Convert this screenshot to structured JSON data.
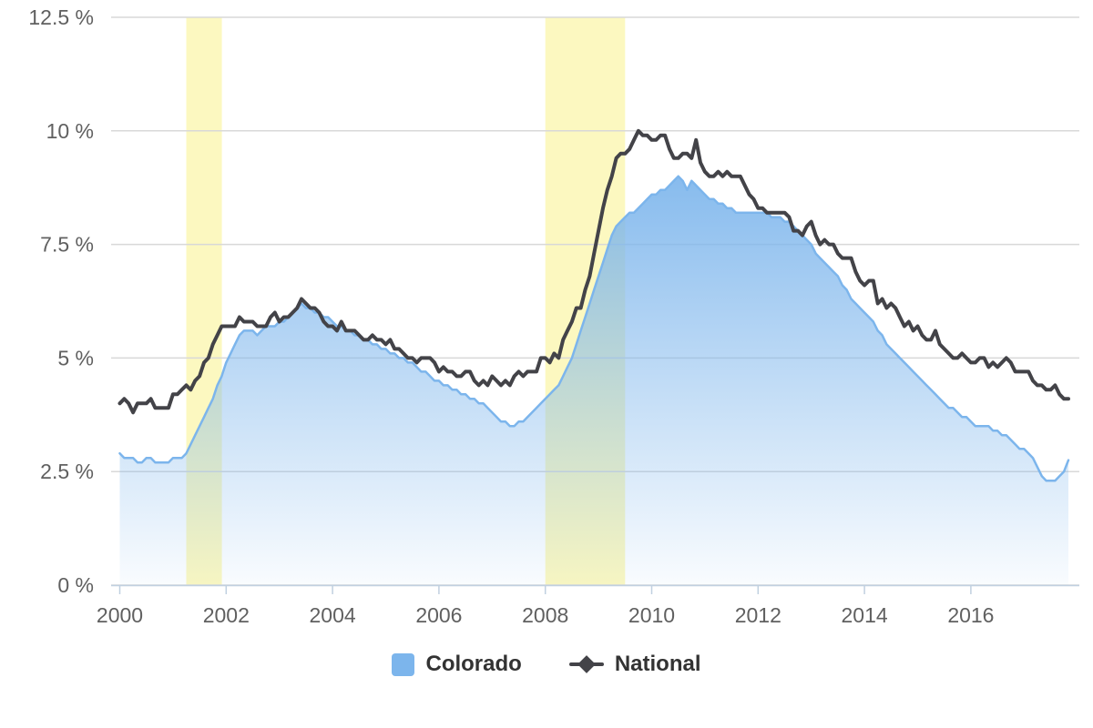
{
  "chart_data": {
    "type": "area",
    "title": "",
    "description": "Unemployment rate, Colorado (blue area) vs National (dark line), monthly from Jan 2000 to Nov 2017, with recession shading bands",
    "x_start_year": 2000.0,
    "x_interval_years": 0.083333,
    "xlim": [
      1999.84,
      2018.04
    ],
    "ylim": [
      0,
      12.5
    ],
    "grid": "horizontal",
    "legend_position": "bottom-center",
    "y_ticks": [
      0,
      2.5,
      5,
      7.5,
      10,
      12.5
    ],
    "y_tick_labels": [
      "0 %",
      "2.5 %",
      "5 %",
      "7.5 %",
      "10 %",
      "12.5 %"
    ],
    "x_ticks": [
      2000,
      2002,
      2004,
      2006,
      2008,
      2010,
      2012,
      2014,
      2016
    ],
    "plot_bands": [
      {
        "from": 2001.25,
        "to": 2001.92
      },
      {
        "from": 2008.0,
        "to": 2009.5
      }
    ],
    "series": [
      {
        "name": "Colorado",
        "type": "area",
        "color": "#7cb5ec",
        "values": [
          2.9,
          2.8,
          2.8,
          2.8,
          2.7,
          2.7,
          2.8,
          2.8,
          2.7,
          2.7,
          2.7,
          2.7,
          2.8,
          2.8,
          2.8,
          2.9,
          3.1,
          3.3,
          3.5,
          3.7,
          3.9,
          4.1,
          4.4,
          4.6,
          4.9,
          5.1,
          5.3,
          5.5,
          5.6,
          5.6,
          5.6,
          5.5,
          5.6,
          5.7,
          5.7,
          5.7,
          5.8,
          5.8,
          5.9,
          6.0,
          6.1,
          6.2,
          6.1,
          6.1,
          6.0,
          6.0,
          5.9,
          5.9,
          5.8,
          5.7,
          5.7,
          5.6,
          5.6,
          5.5,
          5.5,
          5.4,
          5.4,
          5.3,
          5.3,
          5.2,
          5.2,
          5.1,
          5.1,
          5.0,
          5.0,
          4.9,
          4.9,
          4.8,
          4.7,
          4.7,
          4.6,
          4.5,
          4.5,
          4.4,
          4.4,
          4.3,
          4.3,
          4.2,
          4.2,
          4.1,
          4.1,
          4.0,
          4.0,
          3.9,
          3.8,
          3.7,
          3.6,
          3.6,
          3.5,
          3.5,
          3.6,
          3.6,
          3.7,
          3.8,
          3.9,
          4.0,
          4.1,
          4.2,
          4.3,
          4.4,
          4.6,
          4.8,
          5.0,
          5.3,
          5.6,
          5.9,
          6.2,
          6.5,
          6.8,
          7.1,
          7.4,
          7.7,
          7.9,
          8.0,
          8.1,
          8.2,
          8.2,
          8.3,
          8.4,
          8.5,
          8.6,
          8.6,
          8.7,
          8.7,
          8.8,
          8.9,
          9.0,
          8.9,
          8.7,
          8.9,
          8.8,
          8.7,
          8.6,
          8.5,
          8.5,
          8.4,
          8.4,
          8.3,
          8.3,
          8.2,
          8.2,
          8.2,
          8.2,
          8.2,
          8.2,
          8.2,
          8.2,
          8.1,
          8.1,
          8.1,
          8.0,
          8.0,
          7.9,
          7.8,
          7.7,
          7.6,
          7.5,
          7.3,
          7.2,
          7.1,
          7.0,
          6.9,
          6.8,
          6.6,
          6.5,
          6.3,
          6.2,
          6.1,
          6.0,
          5.9,
          5.8,
          5.6,
          5.5,
          5.3,
          5.2,
          5.1,
          5.0,
          4.9,
          4.8,
          4.7,
          4.6,
          4.5,
          4.4,
          4.3,
          4.2,
          4.1,
          4.0,
          3.9,
          3.9,
          3.8,
          3.7,
          3.7,
          3.6,
          3.5,
          3.5,
          3.5,
          3.5,
          3.4,
          3.4,
          3.3,
          3.3,
          3.2,
          3.1,
          3.0,
          3.0,
          2.9,
          2.8,
          2.6,
          2.4,
          2.3,
          2.3,
          2.3,
          2.4,
          2.5,
          2.75
        ]
      },
      {
        "name": "National",
        "type": "line",
        "color": "#434348",
        "marker": "diamond",
        "values": [
          4.0,
          4.1,
          4.0,
          3.8,
          4.0,
          4.0,
          4.0,
          4.1,
          3.9,
          3.9,
          3.9,
          3.9,
          4.2,
          4.2,
          4.3,
          4.4,
          4.3,
          4.5,
          4.6,
          4.9,
          5.0,
          5.3,
          5.5,
          5.7,
          5.7,
          5.7,
          5.7,
          5.9,
          5.8,
          5.8,
          5.8,
          5.7,
          5.7,
          5.7,
          5.9,
          6.0,
          5.8,
          5.9,
          5.9,
          6.0,
          6.1,
          6.3,
          6.2,
          6.1,
          6.1,
          6.0,
          5.8,
          5.7,
          5.7,
          5.6,
          5.8,
          5.6,
          5.6,
          5.6,
          5.5,
          5.4,
          5.4,
          5.5,
          5.4,
          5.4,
          5.3,
          5.4,
          5.2,
          5.2,
          5.1,
          5.0,
          5.0,
          4.9,
          5.0,
          5.0,
          5.0,
          4.9,
          4.7,
          4.8,
          4.7,
          4.7,
          4.6,
          4.6,
          4.7,
          4.7,
          4.5,
          4.4,
          4.5,
          4.4,
          4.6,
          4.5,
          4.4,
          4.5,
          4.4,
          4.6,
          4.7,
          4.6,
          4.7,
          4.7,
          4.7,
          5.0,
          5.0,
          4.9,
          5.1,
          5.0,
          5.4,
          5.6,
          5.8,
          6.1,
          6.1,
          6.5,
          6.8,
          7.3,
          7.8,
          8.3,
          8.7,
          9.0,
          9.4,
          9.5,
          9.5,
          9.6,
          9.8,
          10.0,
          9.9,
          9.9,
          9.8,
          9.8,
          9.9,
          9.9,
          9.6,
          9.4,
          9.4,
          9.5,
          9.5,
          9.4,
          9.8,
          9.3,
          9.1,
          9.0,
          9.0,
          9.1,
          9.0,
          9.1,
          9.0,
          9.0,
          9.0,
          8.8,
          8.6,
          8.5,
          8.3,
          8.3,
          8.2,
          8.2,
          8.2,
          8.2,
          8.2,
          8.1,
          7.8,
          7.8,
          7.7,
          7.9,
          8.0,
          7.7,
          7.5,
          7.6,
          7.5,
          7.5,
          7.3,
          7.2,
          7.2,
          7.2,
          6.9,
          6.7,
          6.6,
          6.7,
          6.7,
          6.2,
          6.3,
          6.1,
          6.2,
          6.1,
          5.9,
          5.7,
          5.8,
          5.6,
          5.7,
          5.5,
          5.4,
          5.4,
          5.6,
          5.3,
          5.2,
          5.1,
          5.0,
          5.0,
          5.1,
          5.0,
          4.9,
          4.9,
          5.0,
          5.0,
          4.8,
          4.9,
          4.8,
          4.9,
          5.0,
          4.9,
          4.7,
          4.7,
          4.7,
          4.7,
          4.5,
          4.4,
          4.4,
          4.3,
          4.3,
          4.4,
          4.2,
          4.1,
          4.1
        ]
      }
    ]
  },
  "legend": {
    "items": [
      {
        "label": "Colorado",
        "swatch": "square"
      },
      {
        "label": "National",
        "swatch": "line-diamond"
      }
    ]
  },
  "colors": {
    "colorado": "#7cb5ec",
    "national": "#434348",
    "recession_band": "#FCF8C0",
    "gridline": "#D8D8D8",
    "axis_line": "#C0D0E0",
    "axis_label": "#606060",
    "legend_text": "#333333"
  }
}
